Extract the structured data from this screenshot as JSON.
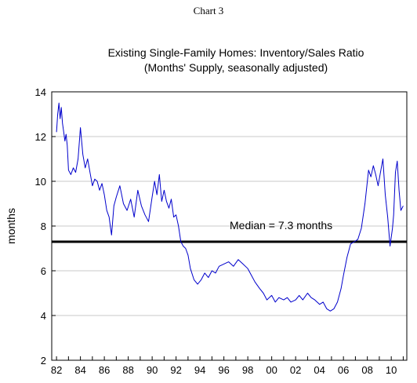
{
  "header": {
    "chart_number": "Chart 3"
  },
  "chart_data": {
    "type": "line",
    "title": "Existing Single-Family Homes: Inventory/Sales Ratio",
    "subtitle": "(Months' Supply, seasonally adjusted)",
    "xlabel": "",
    "ylabel": "months",
    "x_tick_labels": [
      "82",
      "84",
      "86",
      "88",
      "90",
      "92",
      "94",
      "96",
      "98",
      "00",
      "02",
      "04",
      "06",
      "08",
      "10"
    ],
    "y_ticks": [
      2,
      4,
      6,
      8,
      10,
      12,
      14
    ],
    "ylim": [
      2,
      14
    ],
    "xlim": [
      1981.6,
      2011.3
    ],
    "grid": "horizontal",
    "reference_line": {
      "value": 7.3,
      "label": "Median = 7.3 months"
    },
    "colors": {
      "series": "#0000cc",
      "reference": "#000000",
      "grid": "#c8c8c8"
    },
    "series": [
      {
        "x": [
          1982.0,
          1982.1,
          1982.2,
          1982.3,
          1982.4,
          1982.5,
          1982.6,
          1982.7,
          1982.8,
          1982.9,
          1983.0,
          1983.2,
          1983.4,
          1983.6,
          1983.8,
          1984.0,
          1984.2,
          1984.4,
          1984.6,
          1984.8,
          1985.0,
          1985.2,
          1985.4,
          1985.6,
          1985.8,
          1986.0,
          1986.2,
          1986.4,
          1986.5,
          1986.6,
          1986.8,
          1987.0,
          1987.3,
          1987.6,
          1987.9,
          1988.2,
          1988.5,
          1988.8,
          1989.1,
          1989.4,
          1989.7,
          1990.0,
          1990.2,
          1990.4,
          1990.6,
          1990.8,
          1991.0,
          1991.2,
          1991.4,
          1991.6,
          1991.8,
          1992.0,
          1992.2,
          1992.4,
          1992.6,
          1992.8,
          1993.0,
          1993.2,
          1993.5,
          1993.8,
          1994.1,
          1994.4,
          1994.7,
          1995.0,
          1995.3,
          1995.6,
          1996.0,
          1996.4,
          1996.8,
          1997.2,
          1997.6,
          1998.0,
          1998.3,
          1998.6,
          1999.0,
          1999.3,
          1999.6,
          2000.0,
          2000.3,
          2000.6,
          2001.0,
          2001.3,
          2001.6,
          2002.0,
          2002.3,
          2002.6,
          2003.0,
          2003.3,
          2003.6,
          2004.0,
          2004.3,
          2004.6,
          2004.9,
          2005.2,
          2005.5,
          2005.8,
          2006.0,
          2006.3,
          2006.6,
          2006.9,
          2007.2,
          2007.5,
          2007.8,
          2008.1,
          2008.3,
          2008.5,
          2008.7,
          2008.9,
          2009.1,
          2009.3,
          2009.5,
          2009.7,
          2009.9,
          2010.1,
          2010.2,
          2010.35,
          2010.5,
          2010.65,
          2010.8,
          2011.0
        ],
        "values": [
          12.2,
          13.0,
          13.5,
          12.8,
          13.3,
          12.6,
          12.2,
          11.8,
          12.1,
          11.6,
          10.5,
          10.3,
          10.6,
          10.4,
          11.0,
          12.4,
          11.2,
          10.6,
          11.0,
          10.4,
          9.8,
          10.1,
          10.0,
          9.6,
          9.9,
          9.4,
          8.7,
          8.4,
          8.0,
          7.6,
          8.9,
          9.3,
          9.8,
          9.0,
          8.7,
          9.2,
          8.4,
          9.6,
          8.9,
          8.5,
          8.2,
          9.3,
          10.0,
          9.4,
          10.3,
          9.1,
          9.6,
          9.1,
          8.8,
          9.2,
          8.4,
          8.5,
          8.0,
          7.3,
          7.1,
          7.0,
          6.7,
          6.1,
          5.6,
          5.4,
          5.6,
          5.9,
          5.7,
          6.0,
          5.9,
          6.2,
          6.3,
          6.4,
          6.2,
          6.5,
          6.3,
          6.1,
          5.8,
          5.5,
          5.2,
          5.0,
          4.7,
          4.9,
          4.6,
          4.8,
          4.7,
          4.8,
          4.6,
          4.7,
          4.9,
          4.7,
          5.0,
          4.8,
          4.7,
          4.5,
          4.6,
          4.3,
          4.2,
          4.3,
          4.6,
          5.2,
          5.8,
          6.6,
          7.2,
          7.3,
          7.4,
          7.9,
          9.0,
          10.5,
          10.2,
          10.7,
          10.3,
          9.8,
          10.4,
          11.0,
          9.4,
          8.4,
          7.1,
          7.9,
          8.5,
          10.4,
          10.9,
          9.6,
          8.7,
          8.9
        ]
      }
    ]
  }
}
